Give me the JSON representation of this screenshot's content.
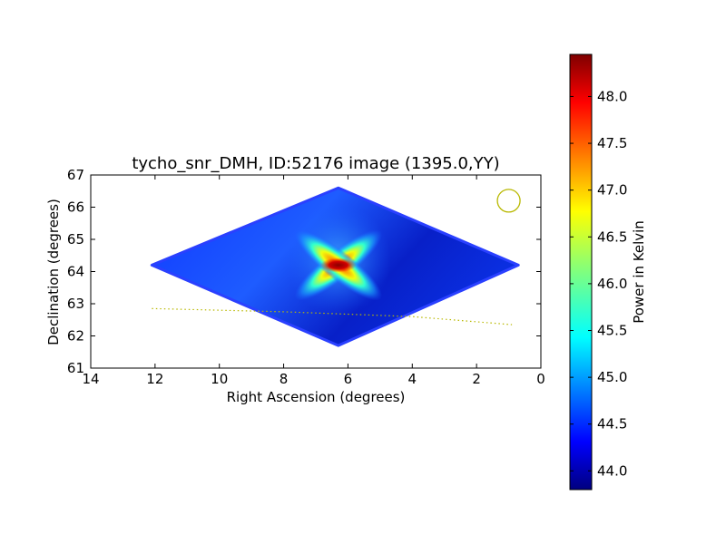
{
  "chart_data": {
    "type": "heatmap",
    "title": "tycho_snr_DMH, ID:52176 image (1395.0,YY)",
    "xlabel": "Right Ascension (degrees)",
    "ylabel": "Declination (degrees)",
    "xlim": [
      14,
      0
    ],
    "ylim": [
      61,
      67
    ],
    "x_ticks": [
      14,
      12,
      10,
      8,
      6,
      4,
      2,
      0
    ],
    "y_ticks": [
      61,
      62,
      63,
      64,
      65,
      66,
      67
    ],
    "grid": false,
    "image_footprint": {
      "ra": [
        12.1,
        6.3,
        0.7,
        6.3
      ],
      "dec": [
        64.2,
        66.6,
        64.2,
        61.7
      ]
    },
    "hotspot": {
      "ra": 6.3,
      "dec": 64.2
    },
    "beam_marker": {
      "ra": 1.0,
      "dec": 66.2,
      "color": "#b8b800"
    },
    "path_line": {
      "color": "#b8b800",
      "ra": [
        12.1,
        8.0,
        4.0,
        0.9
      ],
      "dec": [
        62.85,
        62.75,
        62.6,
        62.35
      ]
    },
    "colorbar": {
      "label": "Power in Kelvin",
      "range": [
        43.8,
        48.45
      ],
      "ticks": [
        "44.0",
        "44.5",
        "45.0",
        "45.5",
        "46.0",
        "46.5",
        "47.0",
        "47.5",
        "48.0"
      ]
    },
    "colormap": "jet"
  }
}
